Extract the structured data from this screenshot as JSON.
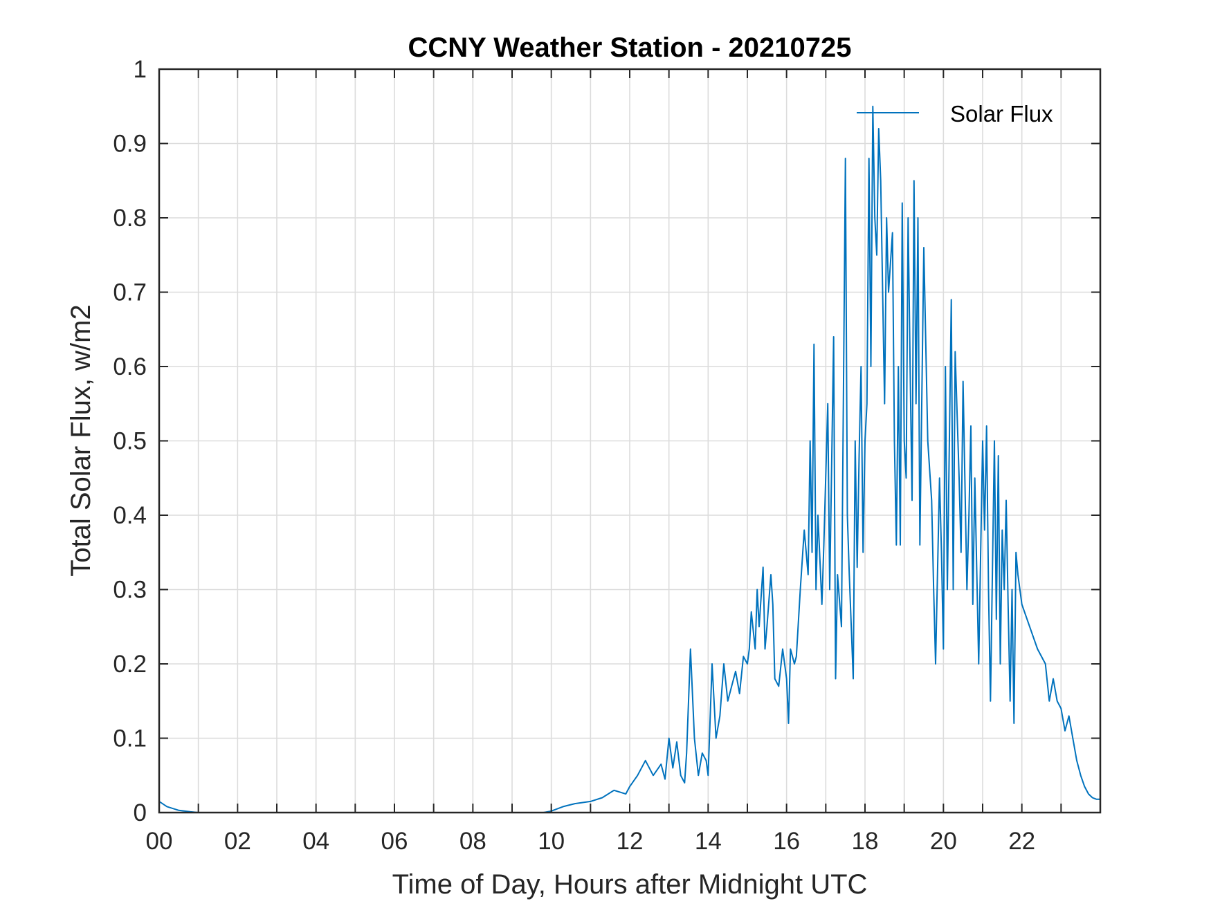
{
  "chart_data": {
    "type": "line",
    "title": "CCNY Weather Station - 20210725",
    "xlabel": "Time of Day, Hours after Midnight UTC",
    "ylabel": "Total Solar Flux, w/m2",
    "xlim": [
      0,
      24
    ],
    "ylim": [
      0,
      1
    ],
    "xticks": [
      0,
      2,
      4,
      6,
      8,
      10,
      12,
      14,
      16,
      18,
      20,
      22
    ],
    "xtick_labels": [
      "00",
      "02",
      "04",
      "06",
      "08",
      "10",
      "12",
      "14",
      "16",
      "18",
      "20",
      "22"
    ],
    "yticks": [
      0,
      0.1,
      0.2,
      0.3,
      0.4,
      0.5,
      0.6,
      0.7,
      0.8,
      0.9,
      1
    ],
    "ytick_labels": [
      "0",
      "0.1",
      "0.2",
      "0.3",
      "0.4",
      "0.5",
      "0.6",
      "0.7",
      "0.8",
      "0.9",
      "1"
    ],
    "grid": true,
    "legend_position": "top-right",
    "series_color": "#0072BD",
    "series": [
      {
        "name": "Solar Flux",
        "x": [
          0,
          0.2,
          0.5,
          0.8,
          1.0,
          2.0,
          4.0,
          6.0,
          8.0,
          9.8,
          10.0,
          10.3,
          10.6,
          11.0,
          11.3,
          11.6,
          11.9,
          12.0,
          12.2,
          12.4,
          12.6,
          12.8,
          12.9,
          13.0,
          13.1,
          13.2,
          13.3,
          13.4,
          13.45,
          13.55,
          13.65,
          13.75,
          13.85,
          13.95,
          14.0,
          14.1,
          14.2,
          14.3,
          14.4,
          14.5,
          14.6,
          14.7,
          14.8,
          14.9,
          15.0,
          15.05,
          15.1,
          15.2,
          15.25,
          15.3,
          15.4,
          15.45,
          15.5,
          15.6,
          15.65,
          15.7,
          15.8,
          15.9,
          16.0,
          16.05,
          16.1,
          16.2,
          16.25,
          16.35,
          16.45,
          16.55,
          16.6,
          16.65,
          16.7,
          16.75,
          16.8,
          16.9,
          16.95,
          17.05,
          17.1,
          17.2,
          17.25,
          17.3,
          17.4,
          17.5,
          17.55,
          17.6,
          17.7,
          17.75,
          17.8,
          17.85,
          17.9,
          17.95,
          18.0,
          18.05,
          18.1,
          18.15,
          18.2,
          18.25,
          18.3,
          18.35,
          18.4,
          18.5,
          18.55,
          18.6,
          18.7,
          18.75,
          18.8,
          18.85,
          18.9,
          18.95,
          19.0,
          19.05,
          19.1,
          19.15,
          19.2,
          19.25,
          19.3,
          19.35,
          19.4,
          19.5,
          19.6,
          19.7,
          19.75,
          19.8,
          19.9,
          19.95,
          20.0,
          20.05,
          20.1,
          20.2,
          20.25,
          20.3,
          20.4,
          20.45,
          20.5,
          20.6,
          20.65,
          20.7,
          20.75,
          20.8,
          20.9,
          21.0,
          21.05,
          21.1,
          21.15,
          21.2,
          21.3,
          21.35,
          21.4,
          21.45,
          21.5,
          21.55,
          21.6,
          21.65,
          21.7,
          21.75,
          21.8,
          21.85,
          21.9,
          22.0,
          22.2,
          22.4,
          22.6,
          22.7,
          22.8,
          22.9,
          23.0,
          23.1,
          23.2,
          23.3,
          23.4,
          23.5,
          23.6,
          23.7,
          23.8,
          23.9,
          24.0
        ],
        "y": [
          0.015,
          0.008,
          0.003,
          0.001,
          0.0,
          0.0,
          0.0,
          0.0,
          0.0,
          0.0,
          0.002,
          0.008,
          0.012,
          0.015,
          0.02,
          0.03,
          0.025,
          0.035,
          0.05,
          0.07,
          0.05,
          0.065,
          0.045,
          0.1,
          0.06,
          0.095,
          0.05,
          0.04,
          0.08,
          0.22,
          0.1,
          0.05,
          0.08,
          0.07,
          0.05,
          0.2,
          0.1,
          0.13,
          0.2,
          0.15,
          0.17,
          0.19,
          0.16,
          0.21,
          0.2,
          0.22,
          0.27,
          0.22,
          0.3,
          0.25,
          0.33,
          0.22,
          0.25,
          0.32,
          0.28,
          0.18,
          0.17,
          0.22,
          0.18,
          0.12,
          0.22,
          0.2,
          0.21,
          0.3,
          0.38,
          0.32,
          0.5,
          0.35,
          0.63,
          0.3,
          0.4,
          0.28,
          0.36,
          0.55,
          0.3,
          0.64,
          0.18,
          0.32,
          0.25,
          0.88,
          0.4,
          0.32,
          0.18,
          0.5,
          0.33,
          0.48,
          0.6,
          0.35,
          0.5,
          0.55,
          0.88,
          0.6,
          0.95,
          0.8,
          0.75,
          0.92,
          0.85,
          0.55,
          0.8,
          0.7,
          0.78,
          0.5,
          0.36,
          0.6,
          0.36,
          0.82,
          0.5,
          0.45,
          0.8,
          0.6,
          0.42,
          0.85,
          0.55,
          0.8,
          0.36,
          0.76,
          0.5,
          0.42,
          0.3,
          0.2,
          0.45,
          0.35,
          0.22,
          0.6,
          0.3,
          0.69,
          0.3,
          0.62,
          0.45,
          0.35,
          0.58,
          0.3,
          0.4,
          0.52,
          0.28,
          0.45,
          0.2,
          0.5,
          0.38,
          0.52,
          0.3,
          0.15,
          0.5,
          0.26,
          0.48,
          0.2,
          0.38,
          0.3,
          0.42,
          0.28,
          0.15,
          0.3,
          0.12,
          0.35,
          0.32,
          0.28,
          0.25,
          0.22,
          0.2,
          0.15,
          0.18,
          0.15,
          0.14,
          0.11,
          0.13,
          0.1,
          0.07,
          0.05,
          0.035,
          0.025,
          0.02,
          0.018,
          0.018
        ]
      }
    ]
  }
}
